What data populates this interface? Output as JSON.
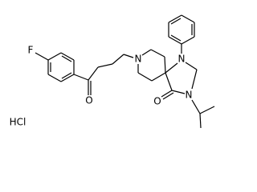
{
  "atoms": [
    {
      "label": "F"
    },
    {
      "label": "O"
    },
    {
      "label": "N"
    },
    {
      "label": "N"
    },
    {
      "label": "N"
    },
    {
      "label": "O"
    }
  ],
  "salt": "HCl"
}
